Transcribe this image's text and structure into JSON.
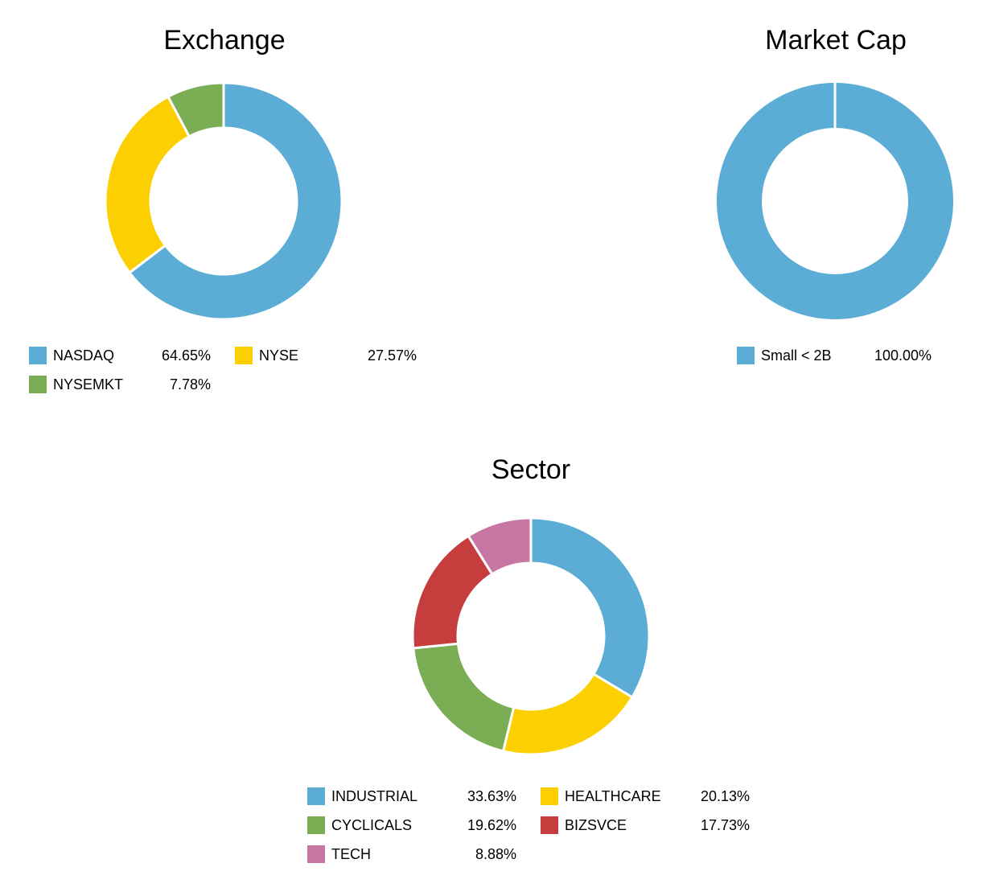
{
  "chart_data": [
    {
      "type": "pie",
      "title": "Exchange",
      "donut": true,
      "categories": [
        "NASDAQ",
        "NYSE",
        "NYSEMKT"
      ],
      "values": [
        64.65,
        27.57,
        7.78
      ],
      "labels": [
        "64.65%",
        "27.57%",
        "7.78%"
      ],
      "colors": [
        "#5badd6",
        "#fccf00",
        "#7aad54"
      ],
      "legend_placement": "bottom"
    },
    {
      "type": "pie",
      "title": "Market Cap",
      "donut": true,
      "categories": [
        "Small < 2B"
      ],
      "values": [
        100.0
      ],
      "labels": [
        "100.00%"
      ],
      "colors": [
        "#5badd6"
      ],
      "legend_placement": "bottom"
    },
    {
      "type": "pie",
      "title": "Sector",
      "donut": true,
      "categories": [
        "INDUSTRIAL",
        "HEALTHCARE",
        "CYCLICALS",
        "BIZSVCE",
        "TECH"
      ],
      "values": [
        33.63,
        20.13,
        19.62,
        17.73,
        8.88
      ],
      "labels": [
        "33.63%",
        "20.13%",
        "19.62%",
        "17.73%",
        "8.88%"
      ],
      "colors": [
        "#5badd6",
        "#fccf00",
        "#7aad54",
        "#c63d3d",
        "#c877a4"
      ],
      "legend_placement": "bottom"
    }
  ]
}
